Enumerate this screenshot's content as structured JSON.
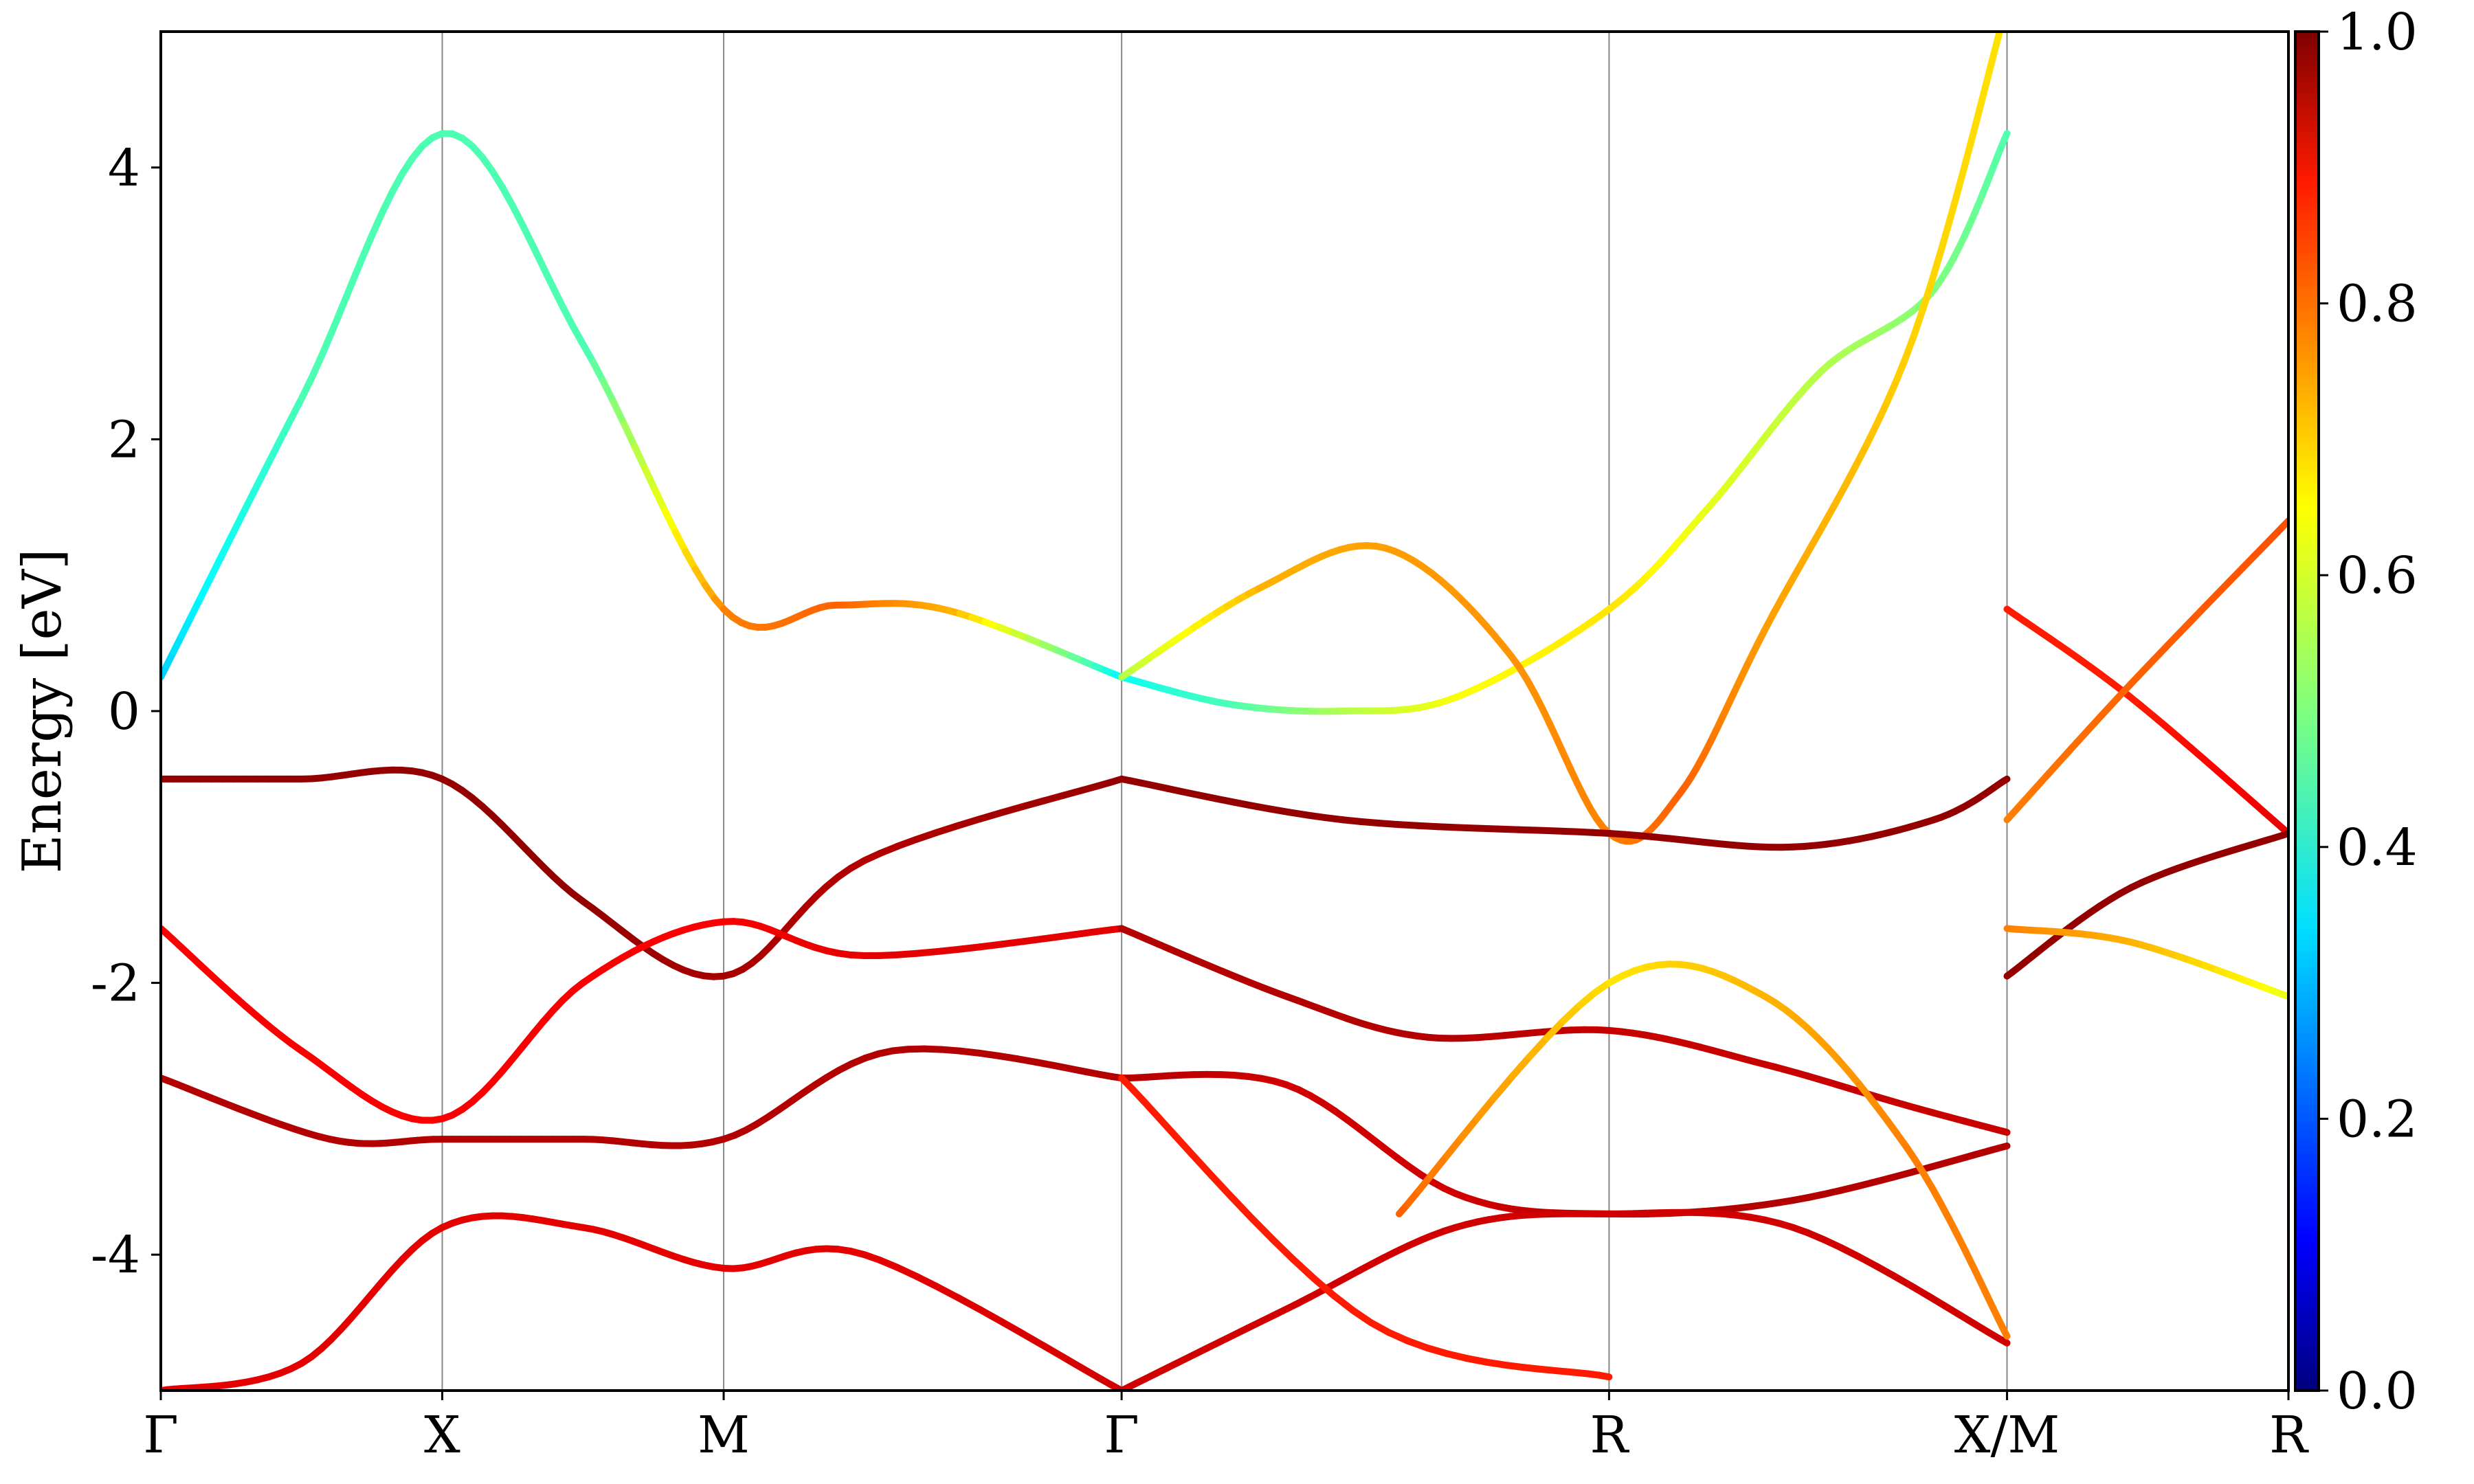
{
  "chart_data": {
    "type": "line",
    "title": "",
    "xlabel": "",
    "ylabel": "Energy [eV]",
    "ylim": [
      -5,
      5
    ],
    "y_ticks": [
      "-4",
      "-2",
      "0",
      "2",
      "4"
    ],
    "y_tick_values": [
      -4,
      -2,
      0,
      2,
      4
    ],
    "k_points": [
      {
        "label": "Γ",
        "x": 0.0
      },
      {
        "label": "X",
        "x": 1.0
      },
      {
        "label": "M",
        "x": 2.0
      },
      {
        "label": "Γ",
        "x": 3.414
      },
      {
        "label": "R",
        "x": 5.146
      },
      {
        "label": "X/M",
        "x": 6.56
      },
      {
        "label": "R",
        "x": 7.56
      }
    ],
    "xlim": [
      0.0,
      7.56
    ],
    "colormap": "jet",
    "colorbar": {
      "range": [
        0.0,
        1.0
      ],
      "ticks": [
        "0.0",
        "0.2",
        "0.4",
        "0.6",
        "0.8",
        "1.0"
      ],
      "tick_values": [
        0.0,
        0.2,
        0.4,
        0.6,
        0.8,
        1.0
      ]
    },
    "series": [
      {
        "x": [
          0,
          0.5,
          1.0,
          1.5,
          2.0,
          2.4,
          2.8,
          3.414
        ],
        "y": [
          0.25,
          2.3,
          4.25,
          2.7,
          0.75,
          0.78,
          0.74,
          0.25
        ],
        "w": [
          0.33,
          0.45,
          0.45,
          0.45,
          0.75,
          0.78,
          0.7,
          0.35
        ]
      },
      {
        "x": [
          3.414,
          3.8,
          4.2,
          4.6,
          5.146,
          5.5,
          5.9,
          6.3,
          6.56
        ],
        "y": [
          0.25,
          0.05,
          0.0,
          0.1,
          0.75,
          1.5,
          2.5,
          3.1,
          4.25
        ],
        "w": [
          0.38,
          0.45,
          0.55,
          0.62,
          0.65,
          0.6,
          0.55,
          0.5,
          0.45
        ]
      },
      {
        "x": [
          3.414,
          3.9,
          4.35,
          4.8,
          5.146,
          5.4,
          5.7,
          6.2,
          6.56
        ],
        "y": [
          0.25,
          0.9,
          1.2,
          0.4,
          -0.9,
          -0.6,
          0.6,
          2.6,
          5.2
        ],
        "w": [
          0.55,
          0.7,
          0.72,
          0.73,
          0.75,
          0.78,
          0.72,
          0.67,
          0.65
        ]
      },
      {
        "x": [
          6.56,
          7.0,
          7.56
        ],
        "y": [
          0.75,
          0.1,
          -0.9
        ],
        "w": [
          0.85,
          0.85,
          0.9
        ]
      },
      {
        "x": [
          6.56,
          7.0,
          7.56
        ],
        "y": [
          -0.8,
          0.2,
          1.4
        ],
        "w": [
          0.75,
          0.78,
          0.8
        ]
      },
      {
        "x": [
          0.0,
          0.5,
          1.0,
          1.5,
          2.0,
          2.5,
          3.414
        ],
        "y": [
          -0.5,
          -0.5,
          -0.5,
          -1.4,
          -1.95,
          -1.1,
          -0.5
        ],
        "w": [
          0.98,
          0.98,
          0.98,
          0.98,
          0.96,
          0.95,
          0.98
        ]
      },
      {
        "x": [
          3.414,
          4.2,
          5.146,
          5.8,
          6.3,
          6.56
        ],
        "y": [
          -0.5,
          -0.8,
          -0.9,
          -1.0,
          -0.8,
          -0.5
        ],
        "w": [
          0.98,
          0.98,
          0.98,
          0.98,
          0.98,
          0.98
        ]
      },
      {
        "x": [
          6.56,
          7.0,
          7.56
        ],
        "y": [
          -1.95,
          -1.3,
          -0.9
        ],
        "w": [
          0.98,
          0.98,
          0.98
        ]
      },
      {
        "x": [
          0.0,
          0.5,
          1.0,
          1.5,
          2.0,
          2.5,
          3.414
        ],
        "y": [
          -1.6,
          -2.5,
          -3.0,
          -2.0,
          -1.55,
          -1.8,
          -1.6
        ],
        "w": [
          0.88,
          0.88,
          0.88,
          0.88,
          0.88,
          0.9,
          0.9
        ]
      },
      {
        "x": [
          3.414,
          4.0,
          4.5,
          5.146,
          5.7,
          6.2,
          6.56
        ],
        "y": [
          -1.6,
          -2.1,
          -2.4,
          -2.35,
          -2.6,
          -2.9,
          -3.1
        ],
        "w": [
          0.95,
          0.95,
          0.95,
          0.93,
          0.93,
          0.93,
          0.93
        ]
      },
      {
        "x": [
          0.0,
          0.6,
          1.0,
          1.5,
          2.0,
          2.6,
          3.414
        ],
        "y": [
          -2.7,
          -3.15,
          -3.15,
          -3.15,
          -3.15,
          -2.5,
          -2.7
        ],
        "w": [
          0.95,
          0.95,
          0.95,
          0.95,
          0.95,
          0.95,
          0.95
        ]
      },
      {
        "x": [
          3.414,
          4.0,
          4.6,
          5.146,
          5.8,
          6.56
        ],
        "y": [
          -2.7,
          -2.75,
          -3.55,
          -3.7,
          -3.6,
          -3.2
        ],
        "w": [
          0.95,
          0.92,
          0.92,
          0.95,
          0.95,
          0.95
        ]
      },
      {
        "x": [
          0.0,
          0.5,
          1.0,
          1.5,
          2.0,
          2.5,
          3.414
        ],
        "y": [
          -5.0,
          -4.8,
          -3.8,
          -3.8,
          -4.1,
          -4.0,
          -5.0
        ],
        "w": [
          0.9,
          0.9,
          0.9,
          0.9,
          0.9,
          0.9,
          0.92
        ]
      },
      {
        "x": [
          3.414,
          4.0,
          4.6,
          5.146,
          5.8,
          6.56
        ],
        "y": [
          -5.0,
          -4.4,
          -3.8,
          -3.7,
          -3.8,
          -4.65
        ],
        "w": [
          0.92,
          0.92,
          0.92,
          0.92,
          0.92,
          0.92
        ]
      },
      {
        "x": [
          3.414,
          4.3,
          5.146
        ],
        "y": [
          -2.7,
          -4.5,
          -4.9
        ],
        "w": [
          0.85,
          0.85,
          0.85
        ]
      },
      {
        "x": [
          4.4,
          5.146,
          5.7,
          6.2,
          6.56
        ],
        "y": [
          -3.7,
          -2.0,
          -2.1,
          -3.2,
          -4.6
        ],
        "w": [
          0.78,
          0.65,
          0.7,
          0.75,
          0.75
        ]
      },
      {
        "x": [
          6.56,
          7.0,
          7.56
        ],
        "y": [
          -1.6,
          -1.7,
          -2.1
        ],
        "w": [
          0.75,
          0.7,
          0.6
        ]
      }
    ]
  }
}
